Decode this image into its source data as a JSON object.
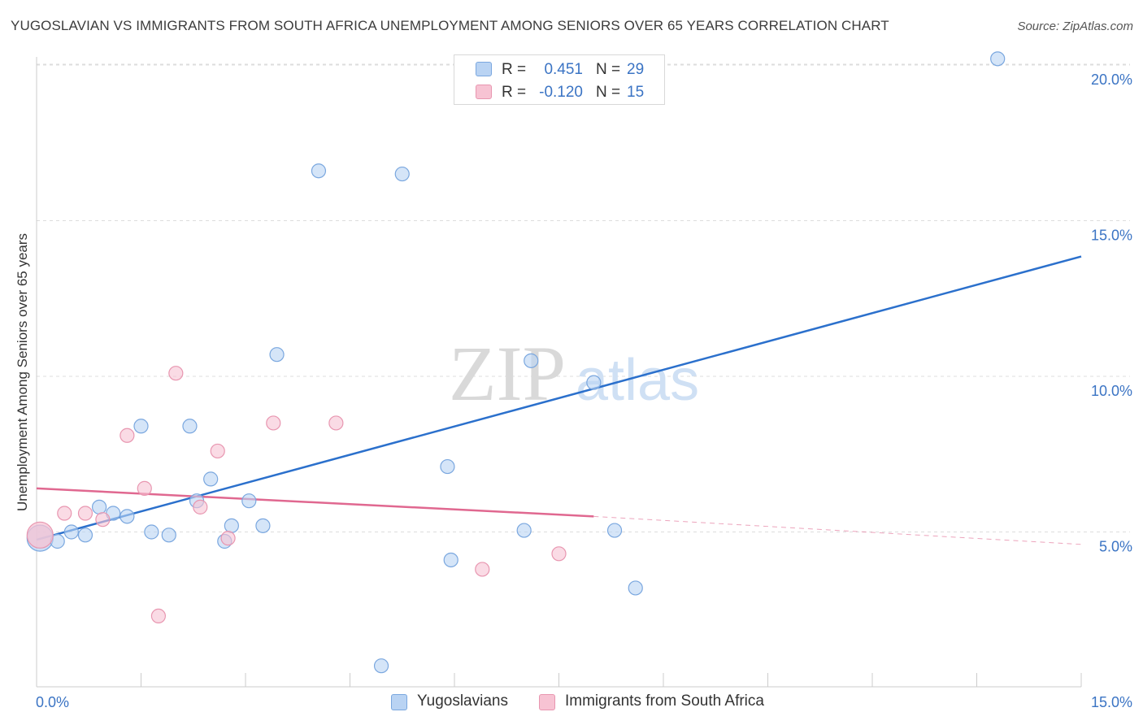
{
  "title": "YUGOSLAVIAN VS IMMIGRANTS FROM SOUTH AFRICA UNEMPLOYMENT AMONG SENIORS OVER 65 YEARS CORRELATION CHART",
  "source": "Source: ZipAtlas.com",
  "watermark": {
    "zip": "ZIP",
    "atlas": "atlas"
  },
  "colors": {
    "blue_fill": "#b9d3f3",
    "blue_stroke": "#7aa7df",
    "blue_line": "#2b70cc",
    "pink_fill": "#f7c3d3",
    "pink_stroke": "#e896b0",
    "pink_line": "#e06890",
    "tick_text": "#3b74c4",
    "grid": "#dddddd"
  },
  "stats": [
    {
      "r_label": "R =",
      "r_value": "0.451",
      "n_label": "N =",
      "n_value": "29",
      "series": "blue"
    },
    {
      "r_label": "R =",
      "r_value": "-0.120",
      "n_label": "N =",
      "n_value": "15",
      "series": "pink"
    }
  ],
  "legend": [
    {
      "label": "Yugoslavians",
      "series": "blue"
    },
    {
      "label": "Immigrants from South Africa",
      "series": "pink"
    }
  ],
  "chart_data": {
    "type": "scatter",
    "title": "YUGOSLAVIAN VS IMMIGRANTS FROM SOUTH AFRICA UNEMPLOYMENT AMONG SENIORS OVER 65 YEARS CORRELATION CHART",
    "xlabel": "",
    "ylabel": "Unemployment Among Seniors over 65 years",
    "xlim": [
      0,
      15
    ],
    "ylim": [
      0,
      20.5
    ],
    "x_tick_labels": {
      "left": "0.0%",
      "right": "15.0%"
    },
    "y_ticks": [
      {
        "value": 5,
        "label": "5.0%"
      },
      {
        "value": 10,
        "label": "10.0%"
      },
      {
        "value": 15,
        "label": "15.0%"
      },
      {
        "value": 20,
        "label": "20.0%"
      }
    ],
    "series": [
      {
        "name": "Yugoslavians",
        "color": "blue",
        "points": [
          [
            0.05,
            4.8
          ],
          [
            0.3,
            4.7
          ],
          [
            0.5,
            5.0
          ],
          [
            0.7,
            4.9
          ],
          [
            0.9,
            5.8
          ],
          [
            1.1,
            5.6
          ],
          [
            1.3,
            5.5
          ],
          [
            1.5,
            8.4
          ],
          [
            1.65,
            5.0
          ],
          [
            1.9,
            4.9
          ],
          [
            2.2,
            8.4
          ],
          [
            2.3,
            6.0
          ],
          [
            2.5,
            6.7
          ],
          [
            2.7,
            4.7
          ],
          [
            2.8,
            5.2
          ],
          [
            3.05,
            6.0
          ],
          [
            3.25,
            5.2
          ],
          [
            3.45,
            10.7
          ],
          [
            4.05,
            16.6
          ],
          [
            4.95,
            0.7
          ],
          [
            5.25,
            16.5
          ],
          [
            5.9,
            7.1
          ],
          [
            5.95,
            4.1
          ],
          [
            7.0,
            5.05
          ],
          [
            7.1,
            10.5
          ],
          [
            8.0,
            9.8
          ],
          [
            8.3,
            5.05
          ],
          [
            8.6,
            3.2
          ],
          [
            13.8,
            20.2
          ]
        ],
        "trend": {
          "x": [
            0,
            15
          ],
          "y": [
            4.75,
            13.85
          ]
        }
      },
      {
        "name": "Immigrants from South Africa",
        "color": "pink",
        "points": [
          [
            0.05,
            4.9
          ],
          [
            0.4,
            5.6
          ],
          [
            0.7,
            5.6
          ],
          [
            0.95,
            5.4
          ],
          [
            1.3,
            8.1
          ],
          [
            1.55,
            6.4
          ],
          [
            1.75,
            2.3
          ],
          [
            2.0,
            10.1
          ],
          [
            2.35,
            5.8
          ],
          [
            2.6,
            7.6
          ],
          [
            2.75,
            4.8
          ],
          [
            3.4,
            8.5
          ],
          [
            4.3,
            8.5
          ],
          [
            6.4,
            3.8
          ],
          [
            7.5,
            4.3
          ]
        ],
        "trend": {
          "x": [
            0,
            8.0
          ],
          "y": [
            6.4,
            5.5
          ]
        },
        "trend_dashed": {
          "x": [
            8.0,
            15
          ],
          "y": [
            5.5,
            4.6
          ]
        }
      }
    ]
  }
}
